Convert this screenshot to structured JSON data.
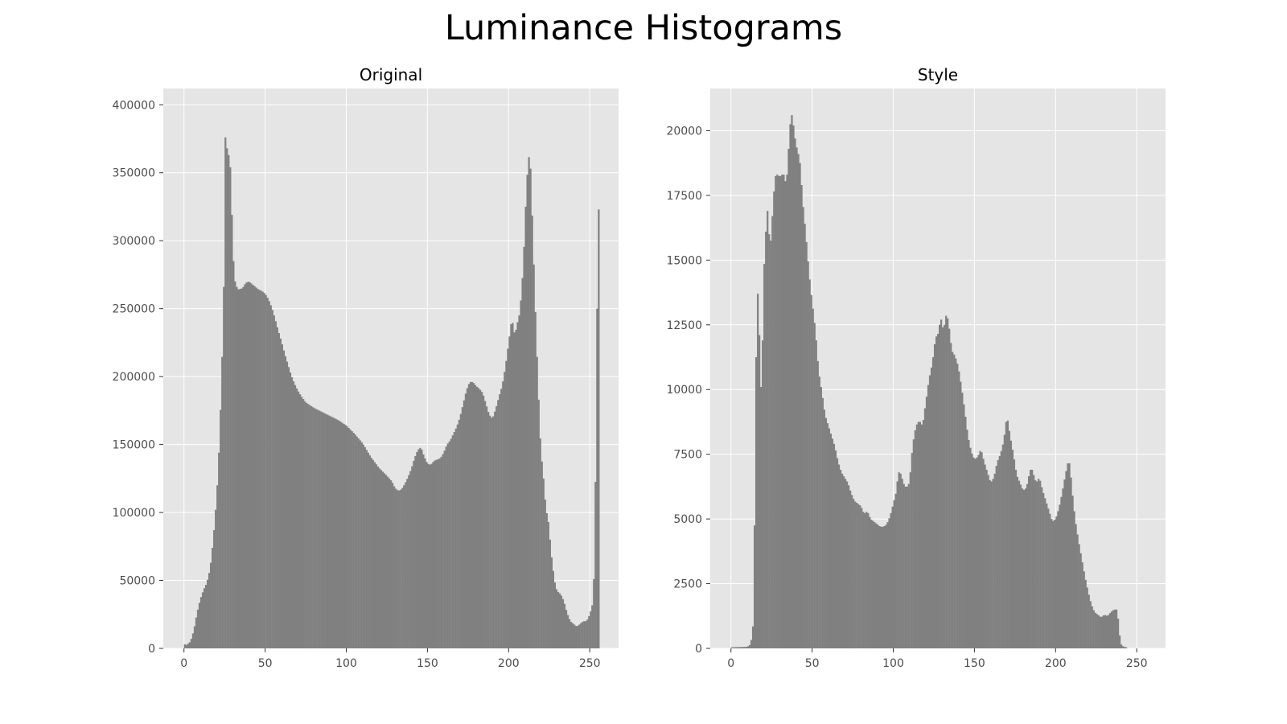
{
  "figure": {
    "title": "Luminance Histograms"
  },
  "colors": {
    "panel_bg": "#e5e5e5",
    "grid": "#ffffff",
    "bar": "#808080",
    "tick_text": "#4d4d4d"
  },
  "chart_data": [
    {
      "type": "bar",
      "title": "Original",
      "xlabel": "",
      "ylabel": "",
      "xlim": [
        -12.75,
        267.75
      ],
      "ylim": [
        0,
        412000
      ],
      "grid": true,
      "xticks": [
        0,
        50,
        100,
        150,
        200,
        250
      ],
      "xtick_labels": [
        "0",
        "50",
        "100",
        "150",
        "200",
        "250"
      ],
      "yticks": [
        0,
        50000,
        100000,
        150000,
        200000,
        250000,
        300000,
        350000,
        400000
      ],
      "ytick_labels": [
        "0",
        "50000",
        "100000",
        "150000",
        "200000",
        "250000",
        "300000",
        "350000",
        "400000"
      ],
      "x": [
        0,
        256
      ],
      "points": [
        [
          0,
          4000
        ],
        [
          1,
          2000
        ],
        [
          4,
          5000
        ],
        [
          6,
          13000
        ],
        [
          8,
          26000
        ],
        [
          10,
          36000
        ],
        [
          12,
          43000
        ],
        [
          14,
          48000
        ],
        [
          16,
          58000
        ],
        [
          17,
          68000
        ],
        [
          18,
          80000
        ],
        [
          19,
          94000
        ],
        [
          20,
          110000
        ],
        [
          21,
          130000
        ],
        [
          22,
          158000
        ],
        [
          23,
          193000
        ],
        [
          24,
          236000
        ],
        [
          25,
          296000
        ],
        [
          25.6,
          392000
        ],
        [
          26.5,
          368000
        ],
        [
          27.5,
          363000
        ],
        [
          28.5,
          354000
        ],
        [
          29.5,
          319000
        ],
        [
          30.5,
          285000
        ],
        [
          31.5,
          270000
        ],
        [
          33,
          264000
        ],
        [
          36,
          265000
        ],
        [
          38,
          269000
        ],
        [
          40,
          270000
        ],
        [
          42,
          268000
        ],
        [
          44,
          266000
        ],
        [
          46,
          264000
        ],
        [
          48,
          263000
        ],
        [
          50,
          261000
        ],
        [
          52,
          257000
        ],
        [
          54,
          251000
        ],
        [
          56,
          243000
        ],
        [
          58,
          234000
        ],
        [
          60,
          226000
        ],
        [
          62,
          217000
        ],
        [
          64,
          209000
        ],
        [
          66,
          201000
        ],
        [
          68,
          195000
        ],
        [
          70,
          190000
        ],
        [
          72,
          186000
        ],
        [
          75,
          181000
        ],
        [
          80,
          177000
        ],
        [
          85,
          174000
        ],
        [
          90,
          171000
        ],
        [
          95,
          168000
        ],
        [
          100,
          164000
        ],
        [
          105,
          158000
        ],
        [
          110,
          151000
        ],
        [
          115,
          141000
        ],
        [
          120,
          133000
        ],
        [
          125,
          127000
        ],
        [
          128,
          123000
        ],
        [
          130,
          118000
        ],
        [
          132,
          116000
        ],
        [
          134,
          117000
        ],
        [
          136,
          121000
        ],
        [
          138,
          126000
        ],
        [
          140,
          132000
        ],
        [
          142,
          140000
        ],
        [
          144,
          146000
        ],
        [
          146,
          148000
        ],
        [
          148,
          141000
        ],
        [
          150,
          136000
        ],
        [
          152,
          135000
        ],
        [
          154,
          138000
        ],
        [
          156,
          139000
        ],
        [
          158,
          140000
        ],
        [
          160,
          144000
        ],
        [
          162,
          150000
        ],
        [
          164,
          153000
        ],
        [
          166,
          158000
        ],
        [
          168,
          163000
        ],
        [
          170,
          170000
        ],
        [
          172,
          180000
        ],
        [
          174,
          190000
        ],
        [
          176,
          196000
        ],
        [
          178,
          196000
        ],
        [
          180,
          193000
        ],
        [
          182,
          191000
        ],
        [
          184,
          188000
        ],
        [
          186,
          180000
        ],
        [
          188,
          172000
        ],
        [
          190,
          169000
        ],
        [
          192,
          176000
        ],
        [
          194,
          185000
        ],
        [
          196,
          193000
        ],
        [
          198,
          207000
        ],
        [
          200,
          225000
        ],
        [
          202,
          243000
        ],
        [
          203,
          236000
        ],
        [
          204,
          229000
        ],
        [
          205,
          240000
        ],
        [
          206,
          240000
        ],
        [
          207,
          250000
        ],
        [
          208,
          262000
        ],
        [
          209,
          283000
        ],
        [
          210,
          308000
        ],
        [
          211,
          342000
        ],
        [
          212,
          355000
        ],
        [
          213,
          368000
        ],
        [
          214,
          338000
        ],
        [
          215,
          299000
        ],
        [
          216,
          266000
        ],
        [
          217,
          229000
        ],
        [
          218,
          200000
        ],
        [
          219,
          166000
        ],
        [
          220,
          143000
        ],
        [
          221,
          132000
        ],
        [
          222,
          118000
        ],
        [
          223,
          101000
        ],
        [
          224,
          98000
        ],
        [
          225,
          88000
        ],
        [
          226,
          72000
        ],
        [
          227,
          62000
        ],
        [
          228,
          52000
        ],
        [
          229,
          45000
        ],
        [
          230,
          42000
        ],
        [
          232,
          40000
        ],
        [
          234,
          35000
        ],
        [
          236,
          26000
        ],
        [
          238,
          20000
        ],
        [
          240,
          18000
        ],
        [
          242,
          16000
        ],
        [
          244,
          18000
        ],
        [
          246,
          20000
        ],
        [
          248,
          20000
        ],
        [
          250,
          25000
        ],
        [
          252,
          34000
        ],
        [
          253,
          68000
        ],
        [
          254,
          177000
        ],
        [
          255,
          323000
        ],
        [
          255.49,
          323000
        ]
      ]
    },
    {
      "type": "bar",
      "title": "Style",
      "xlabel": "",
      "ylabel": "",
      "xlim": [
        -12.75,
        267.75
      ],
      "ylim": [
        0,
        21630
      ],
      "grid": true,
      "xticks": [
        0,
        50,
        100,
        150,
        200,
        250
      ],
      "xtick_labels": [
        "0",
        "50",
        "100",
        "150",
        "200",
        "250"
      ],
      "yticks": [
        0,
        2500,
        5000,
        7500,
        10000,
        12500,
        15000,
        17500,
        20000
      ],
      "ytick_labels": [
        "0",
        "2500",
        "5000",
        "7500",
        "10000",
        "12500",
        "15000",
        "17500",
        "20000"
      ],
      "x": [
        0,
        244
      ],
      "points": [
        [
          0,
          40
        ],
        [
          10,
          60
        ],
        [
          12,
          150
        ],
        [
          13,
          500
        ],
        [
          14,
          1200
        ],
        [
          15,
          8300
        ],
        [
          16,
          14200
        ],
        [
          17,
          13200
        ],
        [
          18,
          11000
        ],
        [
          19,
          9200
        ],
        [
          20,
          14600
        ],
        [
          21,
          15100
        ],
        [
          22,
          17100
        ],
        [
          23,
          16700
        ],
        [
          24,
          15300
        ],
        [
          25,
          16200
        ],
        [
          26,
          17200
        ],
        [
          27,
          18100
        ],
        [
          28,
          18400
        ],
        [
          29,
          18200
        ],
        [
          30,
          18300
        ],
        [
          31,
          18200
        ],
        [
          32,
          18400
        ],
        [
          33,
          18200
        ],
        [
          34,
          17900
        ],
        [
          35,
          18700
        ],
        [
          36,
          19900
        ],
        [
          37,
          20600
        ],
        [
          38,
          20600
        ],
        [
          39,
          19800
        ],
        [
          40,
          19600
        ],
        [
          41,
          19100
        ],
        [
          42,
          19100
        ],
        [
          43,
          18400
        ],
        [
          44,
          17400
        ],
        [
          45,
          16700
        ],
        [
          46,
          16100
        ],
        [
          47,
          15300
        ],
        [
          48,
          14600
        ],
        [
          49,
          13900
        ],
        [
          50,
          13400
        ],
        [
          52,
          12300
        ],
        [
          54,
          10700
        ],
        [
          56,
          9900
        ],
        [
          58,
          9000
        ],
        [
          60,
          8600
        ],
        [
          62,
          8200
        ],
        [
          64,
          7800
        ],
        [
          66,
          7200
        ],
        [
          68,
          6800
        ],
        [
          70,
          6600
        ],
        [
          72,
          6400
        ],
        [
          74,
          6000
        ],
        [
          76,
          5700
        ],
        [
          78,
          5600
        ],
        [
          80,
          5500
        ],
        [
          82,
          5200
        ],
        [
          84,
          5300
        ],
        [
          86,
          5000
        ],
        [
          88,
          4900
        ],
        [
          90,
          4800
        ],
        [
          92,
          4700
        ],
        [
          94,
          4700
        ],
        [
          96,
          4800
        ],
        [
          98,
          5100
        ],
        [
          100,
          5600
        ],
        [
          102,
          6100
        ],
        [
          103,
          6800
        ],
        [
          104,
          6800
        ],
        [
          105,
          6700
        ],
        [
          106,
          6400
        ],
        [
          108,
          6200
        ],
        [
          110,
          6400
        ],
        [
          111,
          7200
        ],
        [
          112,
          7900
        ],
        [
          114,
          8600
        ],
        [
          116,
          8800
        ],
        [
          118,
          8600
        ],
        [
          120,
          9500
        ],
        [
          122,
          10400
        ],
        [
          124,
          11000
        ],
        [
          126,
          12000
        ],
        [
          128,
          12200
        ],
        [
          129,
          12800
        ],
        [
          130,
          12600
        ],
        [
          131,
          12200
        ],
        [
          132,
          12800
        ],
        [
          133,
          12900
        ],
        [
          134,
          12600
        ],
        [
          135,
          12100
        ],
        [
          136,
          11500
        ],
        [
          138,
          11300
        ],
        [
          140,
          10900
        ],
        [
          142,
          10100
        ],
        [
          144,
          9200
        ],
        [
          146,
          8200
        ],
        [
          148,
          7600
        ],
        [
          150,
          7300
        ],
        [
          152,
          7400
        ],
        [
          154,
          7700
        ],
        [
          156,
          7200
        ],
        [
          158,
          6800
        ],
        [
          160,
          6400
        ],
        [
          162,
          6600
        ],
        [
          164,
          7200
        ],
        [
          166,
          7500
        ],
        [
          168,
          8000
        ],
        [
          169,
          8500
        ],
        [
          170,
          9000
        ],
        [
          171,
          8600
        ],
        [
          172,
          8200
        ],
        [
          174,
          7500
        ],
        [
          176,
          6700
        ],
        [
          178,
          6400
        ],
        [
          180,
          6100
        ],
        [
          182,
          6200
        ],
        [
          184,
          6800
        ],
        [
          185,
          7000
        ],
        [
          186,
          6800
        ],
        [
          188,
          6400
        ],
        [
          190,
          6600
        ],
        [
          192,
          6100
        ],
        [
          194,
          5700
        ],
        [
          196,
          5300
        ],
        [
          198,
          4900
        ],
        [
          200,
          5000
        ],
        [
          202,
          5400
        ],
        [
          204,
          6000
        ],
        [
          206,
          6700
        ],
        [
          208,
          7300
        ],
        [
          209,
          7000
        ],
        [
          210,
          6200
        ],
        [
          212,
          5000
        ],
        [
          214,
          4200
        ],
        [
          216,
          3500
        ],
        [
          218,
          2800
        ],
        [
          220,
          2200
        ],
        [
          222,
          1700
        ],
        [
          224,
          1400
        ],
        [
          226,
          1300
        ],
        [
          228,
          1200
        ],
        [
          230,
          1300
        ],
        [
          232,
          1250
        ],
        [
          234,
          1400
        ],
        [
          236,
          1500
        ],
        [
          238,
          1500
        ],
        [
          239,
          800
        ],
        [
          240,
          200
        ],
        [
          241,
          100
        ],
        [
          243,
          40
        ]
      ]
    }
  ]
}
